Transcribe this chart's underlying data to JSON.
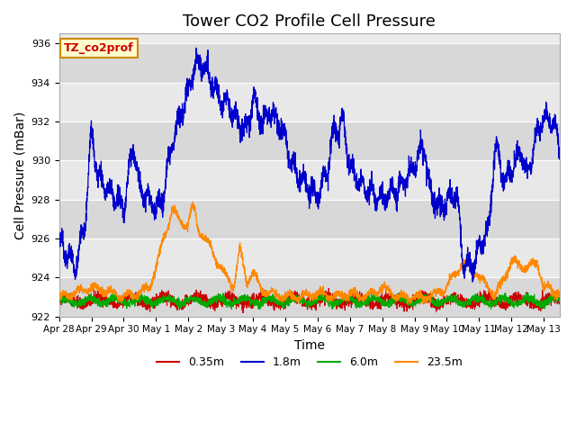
{
  "title": "Tower CO2 Profile Cell Pressure",
  "xlabel": "Time",
  "ylabel": "Cell Pressure (mBar)",
  "ylim": [
    922,
    936.5
  ],
  "yticks": [
    922,
    924,
    926,
    928,
    930,
    932,
    934,
    936
  ],
  "legend_label": "TZ_co2prof",
  "series_labels": [
    "0.35m",
    "1.8m",
    "6.0m",
    "23.5m"
  ],
  "series_colors": [
    "#cc0000",
    "#0000cc",
    "#00aa00",
    "#ff8800"
  ],
  "background_color": "#ffffff",
  "plot_bg_color": "#e8e8e8",
  "band_color": "#d8d8d8",
  "start_day": 0,
  "end_day": 15.5,
  "xtick_positions": [
    0,
    1,
    2,
    3,
    4,
    5,
    6,
    7,
    8,
    9,
    10,
    11,
    12,
    13,
    14,
    15
  ],
  "xtick_labels": [
    "Apr 28",
    "Apr 29",
    "Apr 30",
    "May 1",
    "May 2",
    "May 3",
    "May 4",
    "May 5",
    "May 6",
    "May 7",
    "May 8",
    "May 9",
    "May 10",
    "May 11",
    "May 12",
    "May 13"
  ],
  "title_fontsize": 13,
  "axis_fontsize": 10
}
